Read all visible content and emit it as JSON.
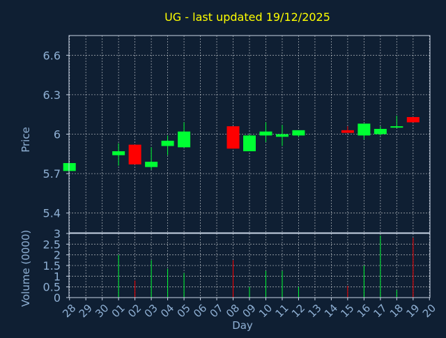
{
  "colors": {
    "background": "#0f1f33",
    "title": "#ffff00",
    "text": "#8fb0d4",
    "axis": "#c8d4e6",
    "grid": "#ffffff",
    "up": "#00ff33",
    "down": "#ff0000"
  },
  "chart_data": {
    "type": "candlestick",
    "title": "UG - last updated 19/12/2025",
    "grid": true,
    "x": {
      "label": "Day",
      "ticks": [
        "28",
        "29",
        "30",
        "01",
        "02",
        "03",
        "04",
        "05",
        "06",
        "07",
        "08",
        "09",
        "10",
        "11",
        "12",
        "13",
        "14",
        "15",
        "16",
        "17",
        "18",
        "19",
        "20"
      ]
    },
    "price": {
      "label": "Price",
      "ylim": [
        5.25,
        6.75
      ],
      "ticks": [
        5.4,
        5.7,
        6,
        6.3,
        6.6
      ],
      "tick_labels": [
        "5.4",
        "5.7",
        "6",
        "6.3",
        "6.6"
      ]
    },
    "volume": {
      "label": "Volume (0000)",
      "ylim": [
        0,
        3
      ],
      "ticks": [
        0,
        0.5,
        1,
        1.5,
        2,
        2.5,
        3
      ],
      "tick_labels": [
        "0",
        "0.5",
        "1",
        "1.5",
        "2",
        "2.5",
        "3"
      ]
    },
    "candles": [
      {
        "day": "28",
        "open": 5.72,
        "close": 5.78,
        "high": 5.78,
        "low": 5.72
      },
      {
        "day": "01",
        "open": 5.84,
        "close": 5.87,
        "high": 5.93,
        "low": 5.76
      },
      {
        "day": "02",
        "open": 5.92,
        "close": 5.77,
        "high": 5.92,
        "low": 5.77
      },
      {
        "day": "03",
        "open": 5.75,
        "close": 5.79,
        "high": 5.9,
        "low": 5.73
      },
      {
        "day": "04",
        "open": 5.91,
        "close": 5.95,
        "high": 5.99,
        "low": 5.84
      },
      {
        "day": "05",
        "open": 5.9,
        "close": 6.02,
        "high": 6.09,
        "low": 5.9
      },
      {
        "day": "08",
        "open": 6.06,
        "close": 5.89,
        "high": 6.06,
        "low": 5.89
      },
      {
        "day": "09",
        "open": 5.87,
        "close": 5.99,
        "high": 6.0,
        "low": 5.87
      },
      {
        "day": "10",
        "open": 5.99,
        "close": 6.02,
        "high": 6.09,
        "low": 5.94
      },
      {
        "day": "11",
        "open": 5.98,
        "close": 6.0,
        "high": 6.07,
        "low": 5.91
      },
      {
        "day": "12",
        "open": 5.99,
        "close": 6.03,
        "high": 6.03,
        "low": 5.98
      },
      {
        "day": "15",
        "open": 6.03,
        "close": 6.01,
        "high": 6.06,
        "low": 6.01
      },
      {
        "day": "16",
        "open": 5.99,
        "close": 6.08,
        "high": 6.08,
        "low": 5.96
      },
      {
        "day": "17",
        "open": 6.0,
        "close": 6.04,
        "high": 6.06,
        "low": 5.99
      },
      {
        "day": "18",
        "open": 6.05,
        "close": 6.06,
        "high": 6.14,
        "low": 6.05
      },
      {
        "day": "19",
        "open": 6.13,
        "close": 6.09,
        "high": 6.13,
        "low": 6.09
      }
    ],
    "volumes": [
      {
        "day": "01",
        "value": 2.0,
        "direction": "up"
      },
      {
        "day": "02",
        "value": 0.8,
        "direction": "down"
      },
      {
        "day": "03",
        "value": 1.75,
        "direction": "up"
      },
      {
        "day": "04",
        "value": 1.35,
        "direction": "up"
      },
      {
        "day": "05",
        "value": 1.15,
        "direction": "up"
      },
      {
        "day": "08",
        "value": 1.75,
        "direction": "down"
      },
      {
        "day": "09",
        "value": 0.5,
        "direction": "up"
      },
      {
        "day": "10",
        "value": 1.25,
        "direction": "up"
      },
      {
        "day": "11",
        "value": 1.25,
        "direction": "up"
      },
      {
        "day": "12",
        "value": 0.5,
        "direction": "up"
      },
      {
        "day": "15",
        "value": 0.55,
        "direction": "down"
      },
      {
        "day": "16",
        "value": 1.5,
        "direction": "up"
      },
      {
        "day": "17",
        "value": 2.9,
        "direction": "up"
      },
      {
        "day": "18",
        "value": 0.35,
        "direction": "up"
      },
      {
        "day": "19",
        "value": 2.8,
        "direction": "down"
      }
    ]
  }
}
